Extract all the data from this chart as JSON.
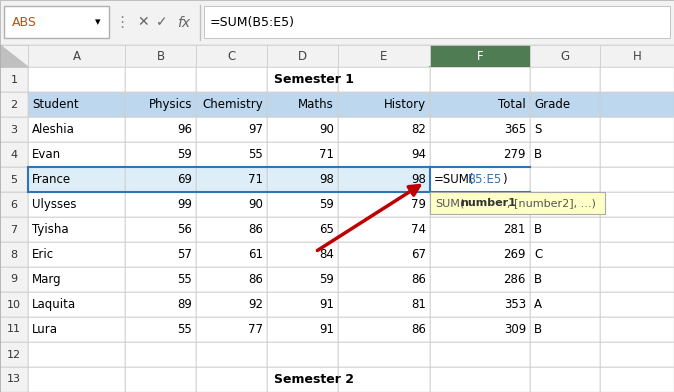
{
  "formula_bar_text": "=SUM(B5:E5)",
  "name_box": "ABS",
  "col_headers": [
    "A",
    "B",
    "C",
    "D",
    "E",
    "F",
    "G",
    "H"
  ],
  "header_row": [
    "Student",
    "Physics",
    "Chemistry",
    "Maths",
    "History",
    "Total",
    "Grade"
  ],
  "data_rows": [
    [
      "Aleshia",
      "96",
      "97",
      "90",
      "82",
      "365",
      "S"
    ],
    [
      "Evan",
      "59",
      "55",
      "71",
      "94",
      "279",
      "B"
    ],
    [
      "France",
      "69",
      "71",
      "98",
      "98",
      "=SUM(B5:E5)",
      ""
    ],
    [
      "Ulysses",
      "99",
      "90",
      "59",
      "79",
      "",
      ""
    ],
    [
      "Tyisha",
      "56",
      "86",
      "65",
      "74",
      "281",
      "B"
    ],
    [
      "Eric",
      "57",
      "61",
      "84",
      "67",
      "269",
      "C"
    ],
    [
      "Marg",
      "55",
      "86",
      "59",
      "86",
      "286",
      "B"
    ],
    [
      "Laquita",
      "89",
      "92",
      "91",
      "81",
      "353",
      "A"
    ],
    [
      "Lura",
      "55",
      "77",
      "91",
      "86",
      "309",
      "B"
    ]
  ],
  "semester1": "Semester 1",
  "semester2": "Semester 2",
  "bg_color": "#f2f2f2",
  "sheet_bg": "#ffffff",
  "header_blue": "#bdd7ee",
  "row5_blue": "#ddeef8",
  "col_header_bg": "#f2f2f2",
  "col_header_border": "#d0d0d0",
  "selected_col_header_bg": "#507c54",
  "grid_color": "#d0d0d0",
  "thick_border": "#000000",
  "selection_border": "#2e75b6",
  "formula_bar_bg": "#f2f2f2",
  "tooltip_bg": "#ffffc8",
  "tooltip_border": "#aaaaaa",
  "arrow_color": "#c00000",
  "blue_text": "#2e75b6",
  "formula_black": "#000000"
}
